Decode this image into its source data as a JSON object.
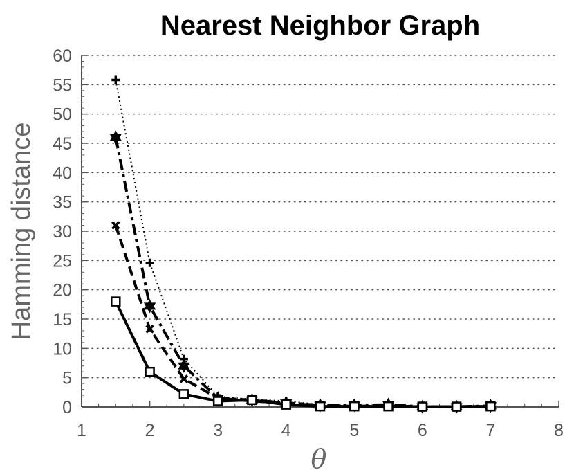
{
  "chart_data": {
    "type": "line",
    "title": "Nearest Neighbor Graph",
    "xlabel": "θ",
    "ylabel": "Hamming distance",
    "xlim": [
      1,
      8
    ],
    "ylim": [
      0,
      60
    ],
    "x_ticks": [
      1,
      2,
      3,
      4,
      5,
      6,
      7,
      8
    ],
    "y_ticks": [
      0,
      5,
      10,
      15,
      20,
      25,
      30,
      35,
      40,
      45,
      50,
      55,
      60
    ],
    "grid": "horizontal dotted",
    "legend": "none",
    "x": [
      1.5,
      2,
      2.5,
      3,
      3.5,
      4,
      4.5,
      5,
      5.5,
      6,
      6.5,
      7
    ],
    "series": [
      {
        "style": "solid",
        "marker": "square",
        "color": "#000000",
        "values": [
          18,
          6,
          2.2,
          1,
          1.2,
          0.4,
          0.1,
          0.1,
          0.1,
          0.05,
          0.05,
          0.1
        ]
      },
      {
        "style": "dashed",
        "marker": "x",
        "color": "#000000",
        "values": [
          31,
          13.3,
          4.8,
          1.5,
          1.0,
          0.7,
          0.2,
          0.15,
          0.2,
          0.05,
          0.05,
          0.1
        ]
      },
      {
        "style": "dash-dot",
        "marker": "hexagram",
        "color": "#000000",
        "values": [
          46,
          17.2,
          7,
          1.5,
          1.2,
          0.7,
          0.3,
          0.3,
          0.4,
          0.05,
          0.05,
          0.2
        ]
      },
      {
        "style": "dotted",
        "marker": "plus",
        "color": "#000000",
        "values": [
          55.8,
          24.6,
          8.2,
          1.8,
          1.3,
          1.0,
          0.4,
          0.2,
          0.3,
          0.1,
          0.1,
          0.2
        ]
      }
    ]
  }
}
